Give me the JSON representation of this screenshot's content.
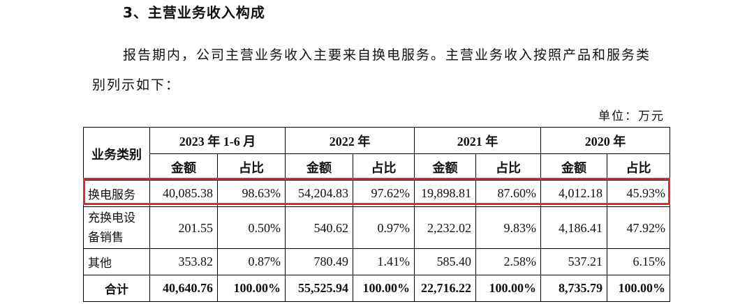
{
  "section_heading": "3、主营业务收入构成",
  "paragraph": {
    "line1": "报告期内，公司主营业务收入主要来自换电服务。主营业务收入按照产品和服务类",
    "line2": "别列示如下："
  },
  "unit_label": "单位：万元",
  "table": {
    "category_header": "业务类别",
    "periods": [
      "2023 年 1-6 月",
      "2022 年",
      "2021 年",
      "2020 年"
    ],
    "sub_headers": {
      "amount": "金额",
      "share": "占比"
    },
    "rows": [
      {
        "category": "换电服务",
        "cells": [
          "40,085.38",
          "98.63%",
          "54,204.83",
          "97.62%",
          "19,898.81",
          "87.60%",
          "4,012.18",
          "45.93%"
        ]
      },
      {
        "category": "充换电设备销售",
        "cells": [
          "201.55",
          "0.50%",
          "540.62",
          "0.97%",
          "2,232.02",
          "9.83%",
          "4,186.41",
          "47.92%"
        ]
      },
      {
        "category": "其他",
        "cells": [
          "353.82",
          "0.87%",
          "780.49",
          "1.41%",
          "585.40",
          "2.58%",
          "537.21",
          "6.15%"
        ]
      }
    ],
    "total": {
      "category": "合计",
      "cells": [
        "40,640.76",
        "100.00%",
        "55,525.94",
        "100.00%",
        "22,716.22",
        "100.00%",
        "8,735.79",
        "100.00%"
      ]
    }
  },
  "highlight_color": "#e8282a"
}
